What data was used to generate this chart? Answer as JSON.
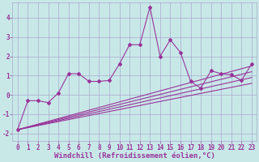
{
  "bg_color": "#c8e8e8",
  "grid_color": "#aaaacc",
  "line_color": "#993399",
  "xlabel": "Windchill (Refroidissement éolien,°C)",
  "xlabel_color": "#993399",
  "xlabel_fontsize": 6.5,
  "tick_color": "#993399",
  "tick_fontsize": 5.5,
  "xlim": [
    -0.5,
    23.5
  ],
  "ylim": [
    -2.4,
    4.8
  ],
  "yticks": [
    -2,
    -1,
    0,
    1,
    2,
    3,
    4
  ],
  "xticks": [
    0,
    1,
    2,
    3,
    4,
    5,
    6,
    7,
    8,
    9,
    10,
    11,
    12,
    13,
    14,
    15,
    16,
    17,
    18,
    19,
    20,
    21,
    22,
    23
  ],
  "main_x": [
    0,
    1,
    2,
    3,
    4,
    5,
    6,
    7,
    8,
    9,
    10,
    11,
    12,
    13,
    14,
    15,
    16,
    17,
    18,
    19,
    20,
    21,
    22,
    23
  ],
  "main_y": [
    -1.8,
    -0.3,
    -0.3,
    -0.4,
    0.1,
    1.1,
    1.1,
    0.7,
    0.7,
    0.75,
    1.6,
    2.6,
    2.6,
    4.55,
    2.0,
    2.85,
    2.2,
    0.7,
    0.35,
    1.25,
    1.1,
    1.05,
    0.75,
    1.6
  ],
  "band_lines": [
    {
      "x0": 0,
      "y0": -1.8,
      "x1": 23,
      "y1": 1.5
    },
    {
      "x0": 0,
      "y0": -1.8,
      "x1": 23,
      "y1": 1.2
    },
    {
      "x0": 0,
      "y0": -1.8,
      "x1": 23,
      "y1": 0.9
    },
    {
      "x0": 0,
      "y0": -1.8,
      "x1": 23,
      "y1": 0.6
    }
  ]
}
